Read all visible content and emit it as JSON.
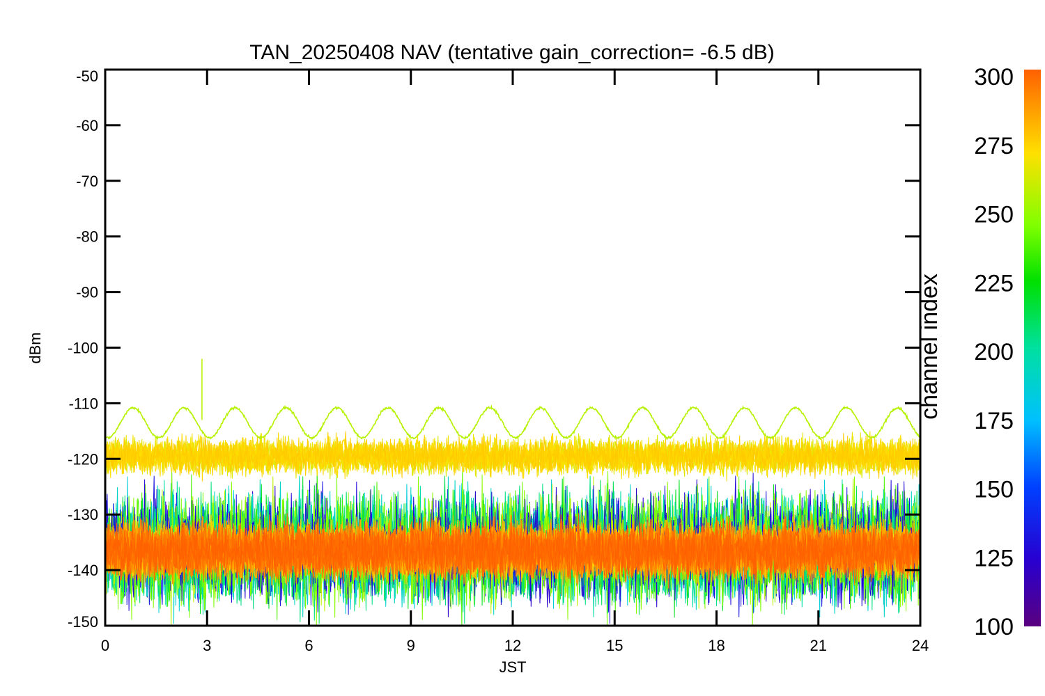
{
  "chart_data": {
    "type": "line",
    "title": "TAN_20250408 NAV (tentative gain_correction= -6.5 dB)",
    "xlabel": "JST",
    "ylabel": "dBm",
    "xlim": [
      0,
      24
    ],
    "ylim": [
      -150,
      -50
    ],
    "x_ticks": [
      0,
      3,
      6,
      9,
      12,
      15,
      18,
      21,
      24
    ],
    "y_ticks": [
      -50,
      -60,
      -70,
      -80,
      -90,
      -100,
      -110,
      -120,
      -130,
      -140,
      -150
    ],
    "grid": false,
    "legend": "none",
    "colorbar": {
      "label": "channel index",
      "range": [
        100,
        300
      ],
      "ticks": [
        100,
        125,
        150,
        175,
        200,
        225,
        250,
        275,
        300
      ],
      "colormap": "rainbow"
    },
    "series_summary": [
      {
        "channel_range": [
          255,
          255
        ],
        "kind": "oscillating carrier",
        "mean_dBm": -113.5,
        "amplitude_dB": 2.7,
        "period_hours": 1.5,
        "spike": {
          "x": 2.85,
          "y": -102
        }
      },
      {
        "channel_range": [
          262,
          275
        ],
        "kind": "noise band",
        "center_dBm": -119.5,
        "spread_dB": 4
      },
      {
        "channel_range": [
          270,
          300
        ],
        "kind": "noise floor",
        "center_dBm": -136.5,
        "spread_dB": 6
      },
      {
        "channel_range": [
          100,
          260
        ],
        "kind": "noise outliers",
        "center_dBm": -136,
        "spread_dB": 12
      }
    ]
  }
}
